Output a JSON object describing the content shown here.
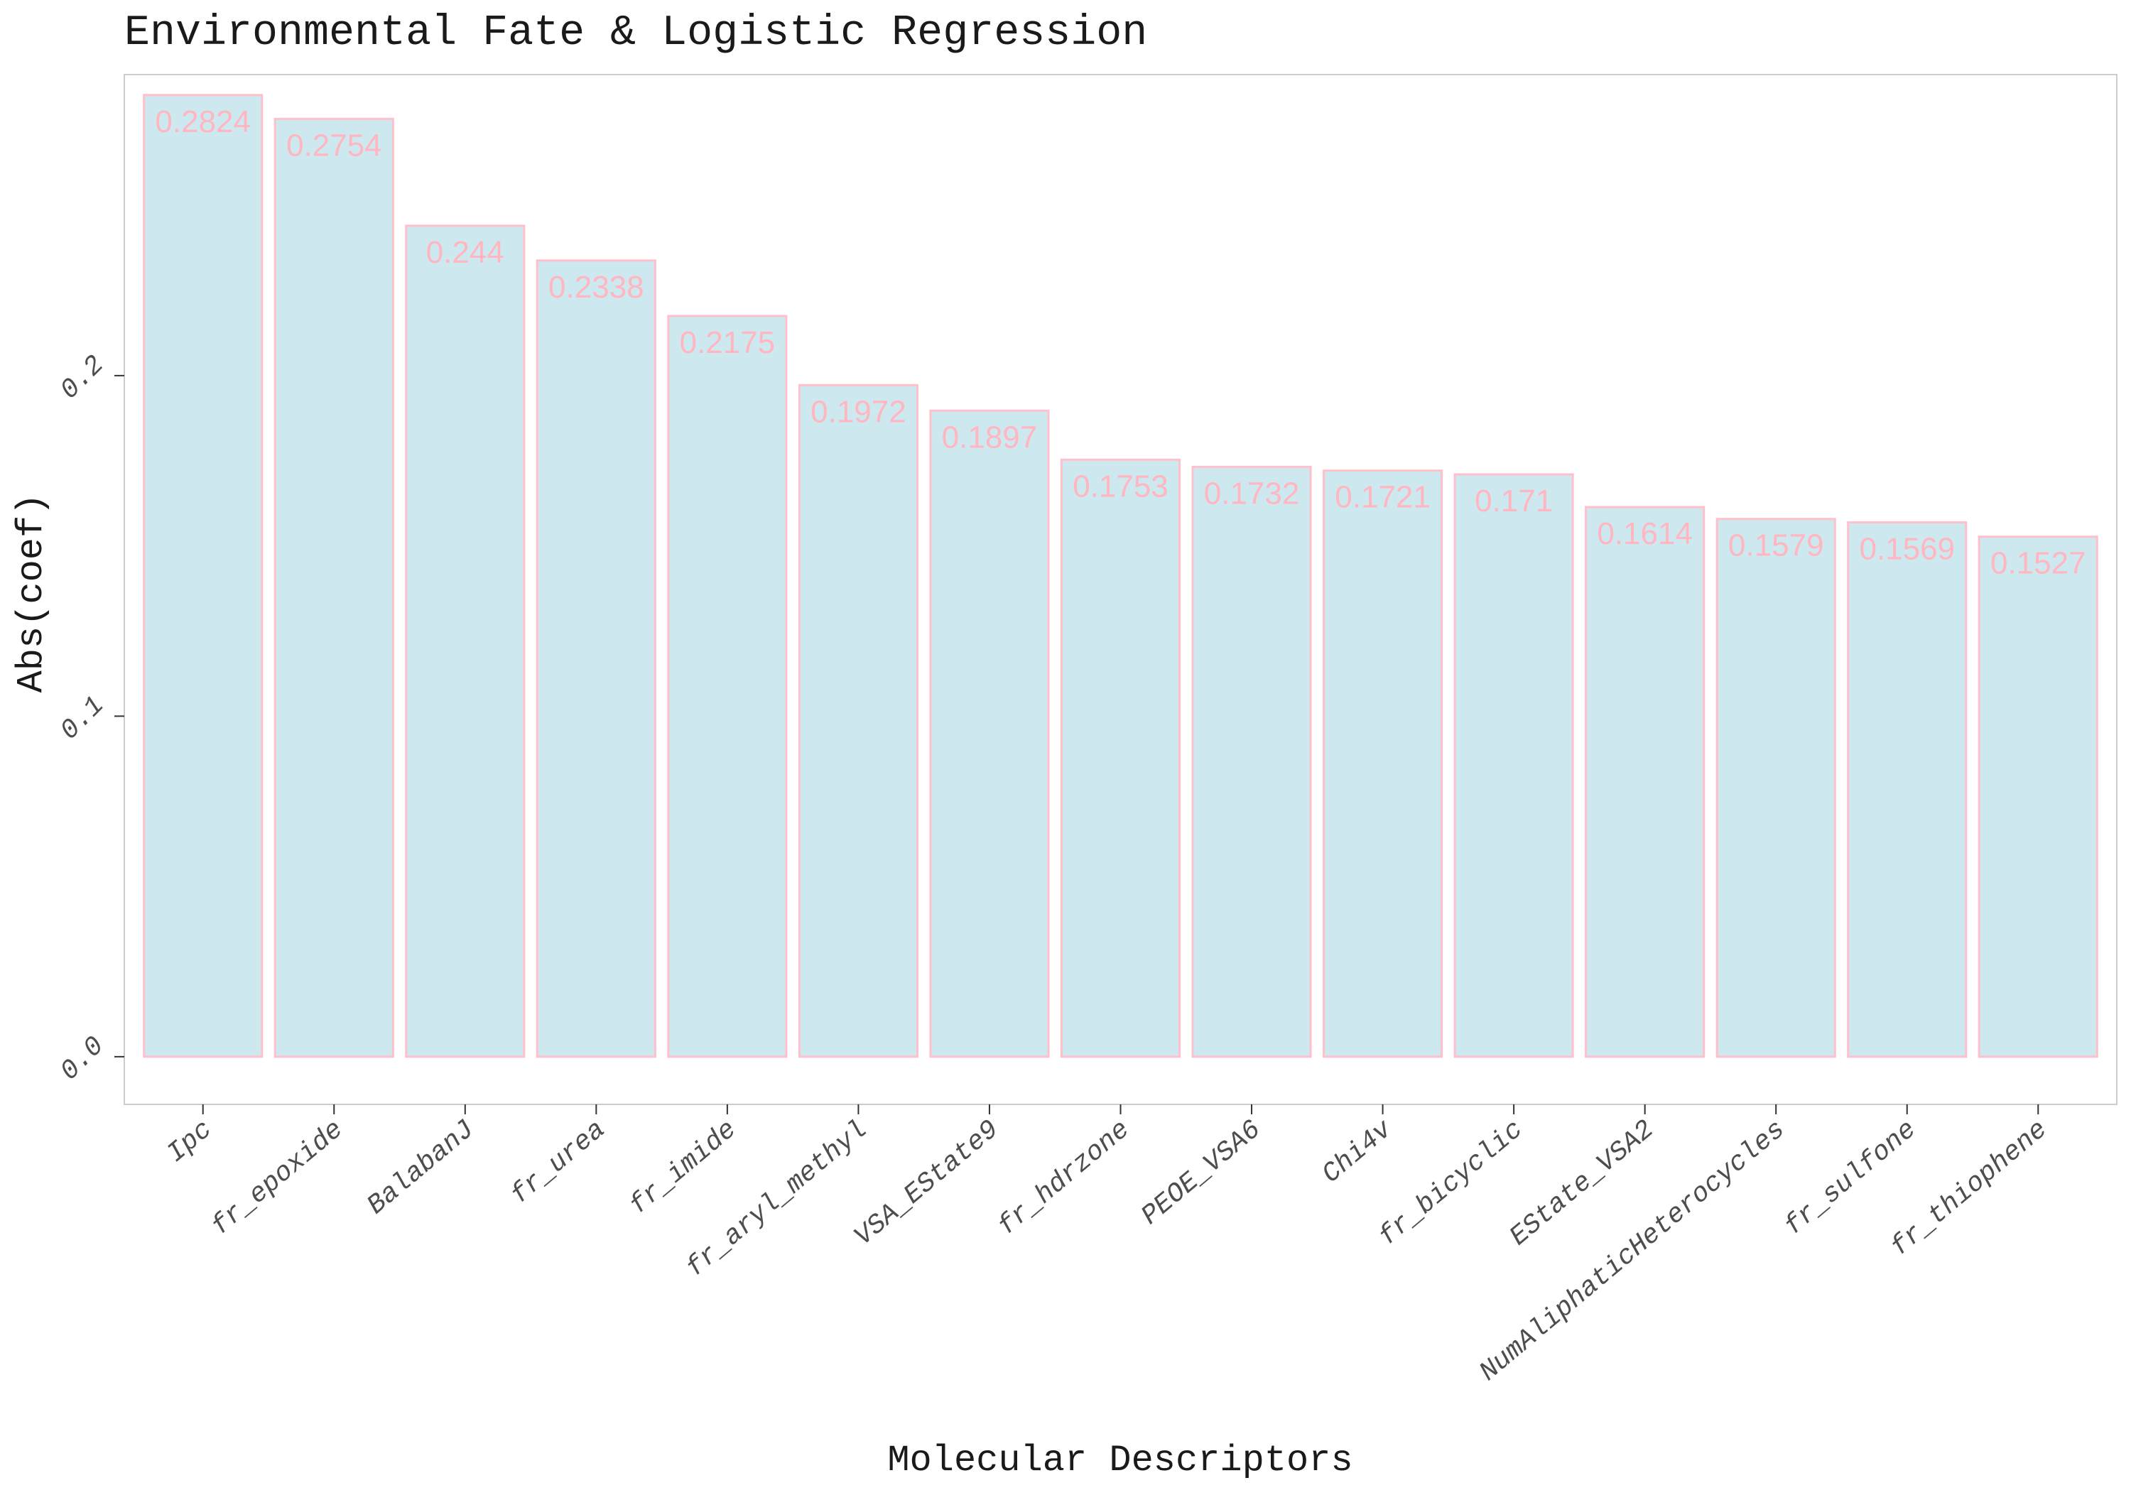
{
  "chart_data": {
    "type": "bar",
    "title": "Environmental Fate & Logistic Regression",
    "xlabel": "Molecular Descriptors",
    "ylabel": "Abs(coef)",
    "categories": [
      "Ipc",
      "fr_epoxide",
      "BalabanJ",
      "fr_urea",
      "fr_imide",
      "fr_aryl_methyl",
      "VSA_EState9",
      "fr_hdrzone",
      "PEOE_VSA6",
      "Chi4v",
      "fr_bicyclic",
      "EState_VSA2",
      "NumAliphaticHeterocycles",
      "fr_sulfone",
      "fr_thiophene"
    ],
    "values": [
      0.2824,
      0.2754,
      0.244,
      0.2338,
      0.2175,
      0.1972,
      0.1897,
      0.1753,
      0.1732,
      0.1721,
      0.171,
      0.1614,
      0.1579,
      0.1569,
      0.1527
    ],
    "value_labels": [
      "0.2824",
      "0.2754",
      "0.244",
      "0.2338",
      "0.2175",
      "0.1972",
      "0.1897",
      "0.1753",
      "0.1732",
      "0.1721",
      "0.171",
      "0.1614",
      "0.1579",
      "0.1569",
      "0.1527"
    ],
    "yticks": [
      0.0,
      0.1,
      0.2
    ],
    "ytick_labels": [
      "0.0",
      "0.1",
      "0.2"
    ],
    "ylim": [
      -0.014,
      0.2884
    ],
    "grid": false,
    "legend": "none",
    "colors": {
      "bar_fill": "#add8e6",
      "bar_stroke": "#ffc0cb",
      "label": "#ffb6c1",
      "panel_border": "#cccccc",
      "axis_tick": "#333333"
    }
  }
}
